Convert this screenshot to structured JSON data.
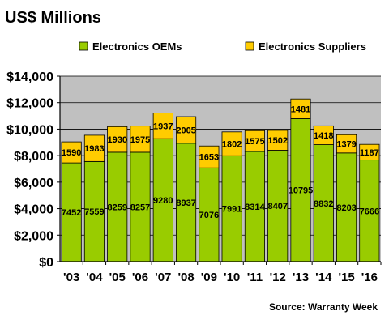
{
  "chart_data": {
    "type": "bar",
    "stacked": true,
    "title": "US$ Millions",
    "categories": [
      "'03",
      "'04",
      "'05",
      "'06",
      "'07",
      "'08",
      "'09",
      "'10",
      "'11",
      "'12",
      "'13",
      "'14",
      "'15",
      "'16"
    ],
    "series": [
      {
        "name": "Electronics OEMs",
        "color": "#99cc00",
        "values": [
          7452,
          7559,
          8259,
          8257,
          9280,
          8937,
          7076,
          7991,
          8314,
          8407,
          10795,
          8832,
          8203,
          7666
        ]
      },
      {
        "name": "Electronics Suppliers",
        "color": "#ffcc00",
        "values": [
          1590,
          1983,
          1930,
          1975,
          1937,
          2005,
          1653,
          1802,
          1575,
          1502,
          1481,
          1418,
          1379,
          1187
        ]
      }
    ],
    "yticks": [
      "$0",
      "$2,000",
      "$4,000",
      "$6,000",
      "$8,000",
      "$10,000",
      "$12,000",
      "$14,000"
    ],
    "ylim": [
      0,
      14000
    ],
    "ystep": 2000,
    "grid": true,
    "legend_position": "top",
    "plot_background": "#c0c0c0",
    "source": "Source: Warranty Week"
  }
}
